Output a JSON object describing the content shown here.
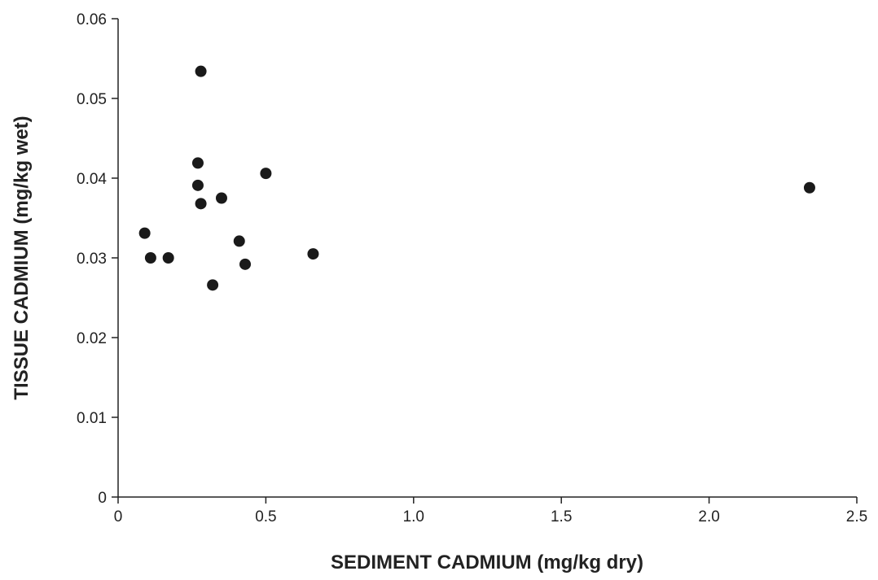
{
  "chart_data": {
    "type": "scatter",
    "title": "",
    "xlabel": "SEDIMENT CADMIUM (mg/kg dry)",
    "ylabel": "TISSUE CADMIUM (mg/kg wet)",
    "xlim": [
      0,
      2.5
    ],
    "ylim": [
      0,
      0.06
    ],
    "x_ticks": [
      "0",
      "0.5",
      "1.0",
      "1.5",
      "2.0",
      "2.5"
    ],
    "y_ticks": [
      "0",
      "0.01",
      "0.02",
      "0.03",
      "0.04",
      "0.05",
      "0.06"
    ],
    "grid": false,
    "legend": "none",
    "marker_color": "#1a1a1a",
    "points": [
      {
        "x": 0.09,
        "y": 0.0331
      },
      {
        "x": 0.11,
        "y": 0.03
      },
      {
        "x": 0.17,
        "y": 0.03
      },
      {
        "x": 0.27,
        "y": 0.0419
      },
      {
        "x": 0.27,
        "y": 0.0391
      },
      {
        "x": 0.28,
        "y": 0.0534
      },
      {
        "x": 0.28,
        "y": 0.0368
      },
      {
        "x": 0.32,
        "y": 0.0266
      },
      {
        "x": 0.35,
        "y": 0.0375
      },
      {
        "x": 0.41,
        "y": 0.0321
      },
      {
        "x": 0.43,
        "y": 0.0292
      },
      {
        "x": 0.5,
        "y": 0.0406
      },
      {
        "x": 0.66,
        "y": 0.0305
      },
      {
        "x": 2.34,
        "y": 0.0388
      }
    ]
  }
}
